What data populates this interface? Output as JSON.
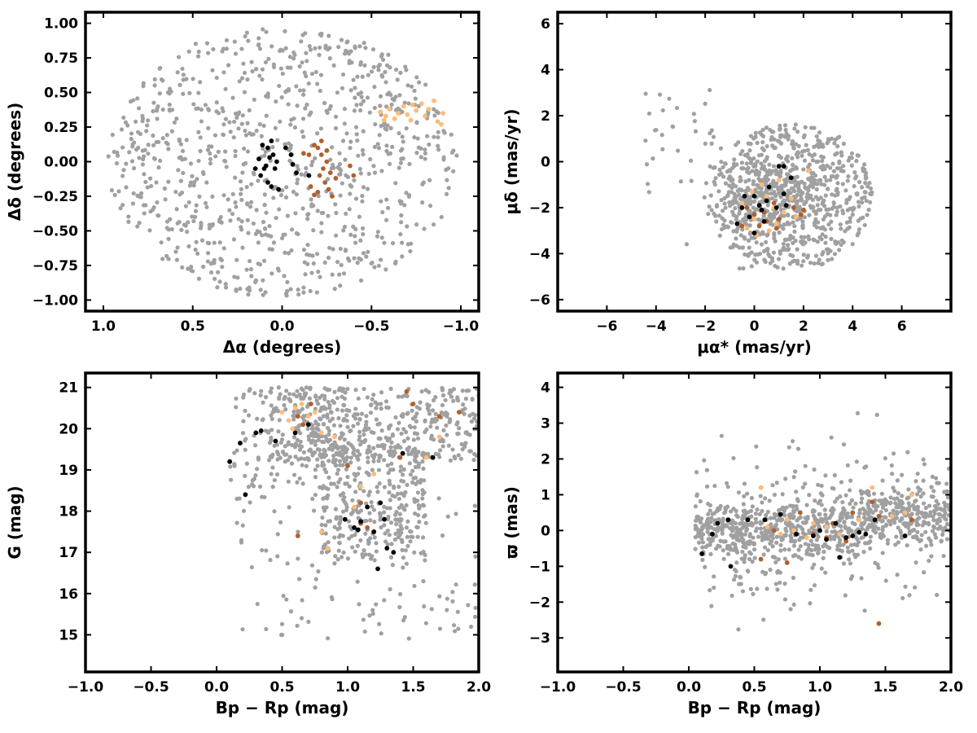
{
  "chart_data": [
    {
      "type": "scatter",
      "xlabel": "Δα (degrees)",
      "ylabel": "Δδ (degrees)",
      "xlim": [
        1.1,
        -1.1
      ],
      "ylim": [
        -1.08,
        1.08
      ],
      "x_ticks": [
        "1.0",
        "0.5",
        "0.0",
        "−0.5",
        "−1.0"
      ],
      "y_ticks": [
        "1.00",
        "0.75",
        "0.50",
        "0.25",
        "0.00",
        "−0.25",
        "−0.50",
        "−0.75",
        "−1.00"
      ],
      "background": {
        "shape": "disk",
        "center": [
          0,
          0
        ],
        "radius": 1.0,
        "count": 900
      },
      "series": [
        {
          "color": "#ffbb77",
          "points": [
            [
              -0.55,
              0.36
            ],
            [
              -0.58,
              0.33
            ],
            [
              -0.6,
              0.38
            ],
            [
              -0.63,
              0.31
            ],
            [
              -0.65,
              0.35
            ],
            [
              -0.68,
              0.4
            ],
            [
              -0.7,
              0.34
            ],
            [
              -0.72,
              0.3
            ],
            [
              -0.75,
              0.37
            ],
            [
              -0.78,
              0.42
            ],
            [
              -0.8,
              0.33
            ],
            [
              -0.82,
              0.38
            ],
            [
              -0.85,
              0.44
            ],
            [
              -0.87,
              0.29
            ],
            [
              -0.9,
              0.35
            ],
            [
              -0.89,
              0.27
            ],
            [
              -0.57,
              0.3
            ],
            [
              -0.73,
              0.41
            ]
          ]
        },
        {
          "color": "#b0602c",
          "points": [
            [
              -0.2,
              0.1
            ],
            [
              -0.22,
              0.05
            ],
            [
              -0.25,
              0.0
            ],
            [
              -0.23,
              -0.05
            ],
            [
              -0.21,
              -0.1
            ],
            [
              -0.24,
              -0.15
            ],
            [
              -0.26,
              -0.2
            ],
            [
              -0.2,
              -0.22
            ],
            [
              -0.22,
              0.15
            ],
            [
              -0.18,
              0.12
            ],
            [
              -0.15,
              0.05
            ],
            [
              -0.27,
              -0.08
            ],
            [
              -0.3,
              -0.12
            ],
            [
              -0.12,
              0.06
            ],
            [
              -0.16,
              -0.18
            ],
            [
              -0.25,
              0.08
            ],
            [
              -0.38,
              -0.03
            ],
            [
              -0.4,
              -0.1
            ],
            [
              -0.18,
              -0.24
            ],
            [
              -0.28,
              -0.25
            ]
          ]
        },
        {
          "color": "#000000",
          "points": [
            [
              0.06,
              0.15
            ],
            [
              0.08,
              0.1
            ],
            [
              0.05,
              0.05
            ],
            [
              0.03,
              0.0
            ],
            [
              0.1,
              -0.05
            ],
            [
              0.12,
              -0.1
            ],
            [
              0.08,
              -0.15
            ],
            [
              0.06,
              -0.18
            ],
            [
              0.02,
              -0.2
            ],
            [
              0.04,
              -0.05
            ],
            [
              0.07,
              0.03
            ],
            [
              -0.02,
              0.1
            ],
            [
              -0.05,
              0.05
            ],
            [
              -0.06,
              -0.02
            ],
            [
              -0.08,
              -0.08
            ],
            [
              0.15,
              -0.05
            ],
            [
              0.13,
              0.02
            ],
            [
              -0.15,
              -0.1
            ],
            [
              0.11,
              0.12
            ],
            [
              0.09,
              -0.03
            ]
          ]
        }
      ]
    },
    {
      "type": "scatter",
      "xlabel": "μα* (mas/yr)",
      "ylabel": "μδ (mas/yr)",
      "xlim": [
        -8,
        8
      ],
      "ylim": [
        -6.5,
        6.5
      ],
      "x_ticks": [
        "−6",
        "−4",
        "−2",
        "0",
        "2",
        "4",
        "6"
      ],
      "y_ticks": [
        "6",
        "4",
        "2",
        "0",
        "−2",
        "−4",
        "−6"
      ],
      "background": {
        "shape": "ellipse",
        "center": [
          1.5,
          -1.5
        ],
        "radii": [
          3.3,
          3.2
        ],
        "count": 900
      },
      "series": [
        {
          "color": "#ffbb77",
          "points": [
            [
              0.5,
              -1.5
            ],
            [
              0.8,
              -2.0
            ],
            [
              1.2,
              -2.2
            ],
            [
              -0.5,
              -1.8
            ],
            [
              0.0,
              -2.5
            ],
            [
              0.3,
              -1.0
            ],
            [
              1.5,
              -1.6
            ],
            [
              -0.3,
              -2.9
            ],
            [
              0.6,
              -3.0
            ],
            [
              1.0,
              -0.8
            ],
            [
              -0.1,
              -1.3
            ],
            [
              1.7,
              -2.4
            ],
            [
              2.2,
              -0.4
            ],
            [
              0.9,
              -2.7
            ],
            [
              0.1,
              -3.2
            ]
          ]
        },
        {
          "color": "#b0602c",
          "points": [
            [
              0.0,
              -2.3
            ],
            [
              0.5,
              -2.6
            ],
            [
              0.8,
              -1.8
            ],
            [
              -0.3,
              -2.0
            ],
            [
              0.2,
              -2.8
            ],
            [
              1.0,
              -2.5
            ],
            [
              1.6,
              -2.0
            ],
            [
              1.9,
              -2.3
            ],
            [
              2.0,
              -2.1
            ],
            [
              -0.5,
              -2.8
            ],
            [
              0.4,
              -2.2
            ],
            [
              0.9,
              -2.9
            ]
          ]
        },
        {
          "color": "#000000",
          "points": [
            [
              -0.5,
              -2.0
            ],
            [
              0.0,
              -1.5
            ],
            [
              0.5,
              -1.7
            ],
            [
              0.9,
              -2.0
            ],
            [
              1.2,
              -1.4
            ],
            [
              1.5,
              -0.7
            ],
            [
              1.0,
              -0.2
            ],
            [
              0.6,
              -1.1
            ],
            [
              -0.2,
              -2.4
            ],
            [
              0.3,
              -2.1
            ],
            [
              -0.7,
              -2.7
            ],
            [
              0.0,
              -3.1
            ],
            [
              1.3,
              -1.9
            ],
            [
              -0.4,
              -1.5
            ],
            [
              0.2,
              -1.9
            ],
            [
              1.2,
              -0.2
            ],
            [
              0.4,
              -2.6
            ]
          ]
        }
      ]
    },
    {
      "type": "scatter",
      "xlabel": "Bp − Rp (mag)",
      "ylabel": "G (mag)",
      "xlim": [
        -1.0,
        2.0
      ],
      "ylim": [
        14.1,
        21.35
      ],
      "x_ticks": [
        "−1.0",
        "−0.5",
        "0.0",
        "0.5",
        "1.0",
        "1.5",
        "2.0"
      ],
      "y_ticks": [
        "21",
        "20",
        "19",
        "18",
        "17",
        "16",
        "15"
      ],
      "background": {
        "shape": "cmd",
        "count": 1000
      },
      "series": [
        {
          "color": "#ffbb77",
          "points": [
            [
              0.5,
              20.4
            ],
            [
              0.55,
              20.2
            ],
            [
              0.6,
              20.5
            ],
            [
              0.7,
              20.3
            ],
            [
              0.75,
              20.4
            ],
            [
              0.8,
              19.9
            ],
            [
              0.9,
              19.8
            ],
            [
              1.1,
              18.6
            ],
            [
              1.2,
              18.9
            ],
            [
              0.8,
              17.5
            ],
            [
              0.85,
              17.1
            ],
            [
              1.6,
              19.3
            ],
            [
              1.7,
              19.8
            ],
            [
              0.65,
              20.6
            ],
            [
              1.05,
              18.1
            ],
            [
              0.58,
              20.0
            ]
          ]
        },
        {
          "color": "#b0602c",
          "points": [
            [
              0.62,
              20.3
            ],
            [
              0.72,
              20.6
            ],
            [
              0.66,
              20.1
            ],
            [
              1.0,
              19.1
            ],
            [
              1.1,
              18.2
            ],
            [
              1.15,
              17.6
            ],
            [
              1.2,
              17.5
            ],
            [
              1.4,
              19.3
            ],
            [
              1.45,
              20.9
            ],
            [
              1.5,
              20.6
            ],
            [
              1.7,
              20.3
            ],
            [
              1.85,
              20.4
            ],
            [
              0.62,
              17.4
            ],
            [
              1.1,
              17.7
            ]
          ]
        },
        {
          "color": "#000000",
          "points": [
            [
              0.1,
              19.2
            ],
            [
              0.18,
              19.65
            ],
            [
              0.22,
              18.4
            ],
            [
              0.3,
              19.9
            ],
            [
              0.34,
              19.95
            ],
            [
              0.45,
              19.7
            ],
            [
              0.6,
              19.9
            ],
            [
              0.7,
              20.1
            ],
            [
              0.98,
              17.8
            ],
            [
              1.05,
              17.6
            ],
            [
              1.1,
              17.75
            ],
            [
              1.15,
              18.1
            ],
            [
              1.2,
              17.5
            ],
            [
              1.25,
              18.2
            ],
            [
              1.28,
              17.8
            ],
            [
              1.3,
              17.1
            ],
            [
              1.35,
              17.0
            ],
            [
              1.42,
              19.4
            ],
            [
              1.65,
              19.3
            ],
            [
              1.23,
              16.6
            ],
            [
              1.08,
              17.55
            ]
          ]
        }
      ]
    },
    {
      "type": "scatter",
      "xlabel": "Bp − Rp (mag)",
      "ylabel": "ϖ (mas)",
      "xlim": [
        -1.0,
        2.0
      ],
      "ylim": [
        -3.95,
        4.4
      ],
      "x_ticks": [
        "−1.0",
        "−0.5",
        "0.0",
        "0.5",
        "1.0",
        "1.5",
        "2.0"
      ],
      "y_ticks": [
        "4",
        "3",
        "2",
        "1",
        "0",
        "−1",
        "−2",
        "−3"
      ],
      "background": {
        "shape": "band",
        "count": 1000
      },
      "series": [
        {
          "color": "#ffbb77",
          "points": [
            [
              0.55,
              1.2
            ],
            [
              0.6,
              0.1
            ],
            [
              0.7,
              -0.1
            ],
            [
              0.75,
              0.3
            ],
            [
              0.8,
              0.0
            ],
            [
              0.9,
              -0.2
            ],
            [
              0.95,
              0.2
            ],
            [
              1.05,
              0.1
            ],
            [
              1.15,
              -0.1
            ],
            [
              1.3,
              0.3
            ],
            [
              1.4,
              1.2
            ],
            [
              1.55,
              0.4
            ],
            [
              1.65,
              0.5
            ],
            [
              1.7,
              1.0
            ]
          ]
        },
        {
          "color": "#b0602c",
          "points": [
            [
              0.55,
              -0.8
            ],
            [
              0.65,
              0.0
            ],
            [
              0.75,
              -0.9
            ],
            [
              0.95,
              -0.1
            ],
            [
              1.05,
              -0.2
            ],
            [
              1.1,
              0.2
            ],
            [
              1.2,
              -0.3
            ],
            [
              1.25,
              0.5
            ],
            [
              1.45,
              0.4
            ],
            [
              1.7,
              0.3
            ],
            [
              1.45,
              -2.6
            ],
            [
              1.4,
              0.8
            ],
            [
              0.85,
              0.5
            ]
          ]
        },
        {
          "color": "#000000",
          "points": [
            [
              0.1,
              -0.65
            ],
            [
              0.18,
              -0.1
            ],
            [
              0.22,
              0.2
            ],
            [
              0.32,
              -1.0
            ],
            [
              0.3,
              0.3
            ],
            [
              0.45,
              0.3
            ],
            [
              0.58,
              0.3
            ],
            [
              0.7,
              0.45
            ],
            [
              0.82,
              -0.1
            ],
            [
              0.95,
              -0.15
            ],
            [
              1.0,
              0.0
            ],
            [
              1.05,
              -0.25
            ],
            [
              1.15,
              -0.75
            ],
            [
              1.2,
              -0.2
            ],
            [
              1.25,
              -0.15
            ],
            [
              1.3,
              -0.05
            ],
            [
              1.35,
              -0.1
            ],
            [
              1.42,
              0.3
            ],
            [
              1.65,
              -0.15
            ],
            [
              1.12,
              0.2
            ]
          ]
        }
      ]
    }
  ],
  "colors": {
    "background_points": "#a0a0a0",
    "frame": "#000000"
  }
}
